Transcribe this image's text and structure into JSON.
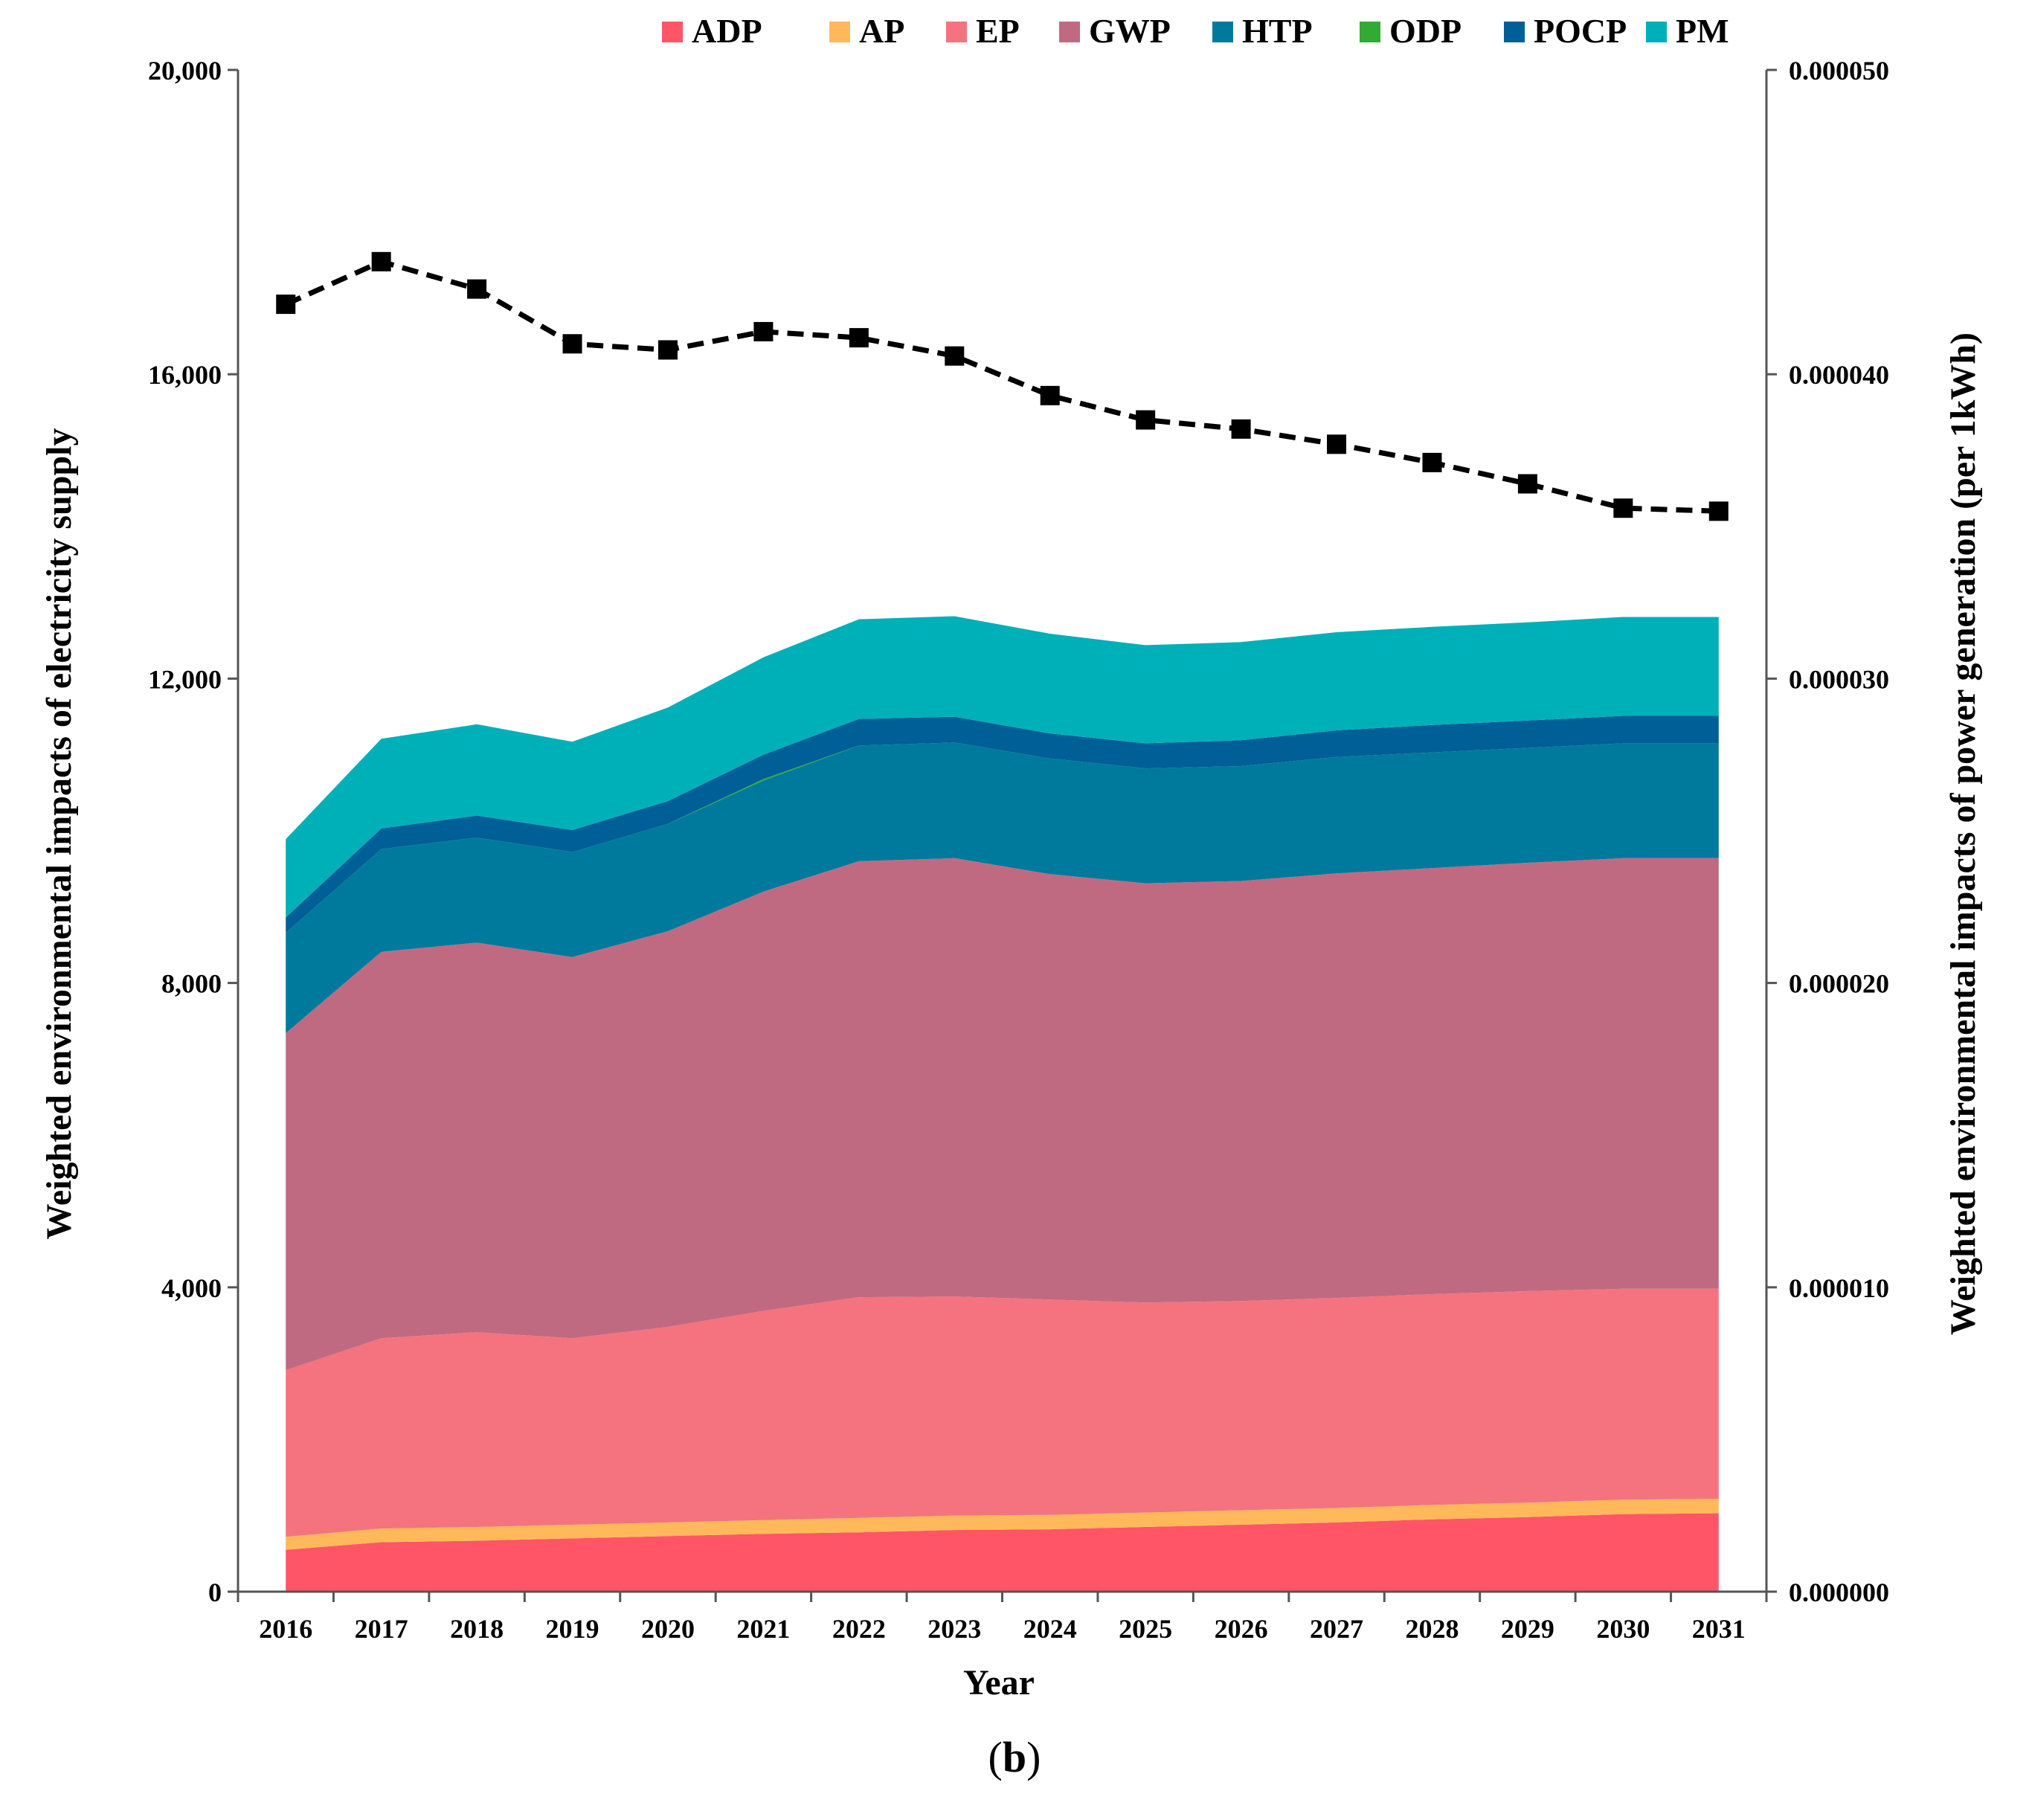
{
  "chart_data": {
    "type": "area",
    "stacked": true,
    "categories": [
      "2016",
      "2017",
      "2018",
      "2019",
      "2020",
      "2021",
      "2022",
      "2023",
      "2024",
      "2025",
      "2026",
      "2027",
      "2028",
      "2029",
      "2030",
      "2031"
    ],
    "series": [
      {
        "name": "ADP",
        "color": "#FF5566",
        "values": [
          550,
          650,
          670,
          700,
          730,
          760,
          780,
          810,
          820,
          850,
          880,
          910,
          950,
          980,
          1020,
          1030
        ]
      },
      {
        "name": "AP",
        "color": "#FFB95A",
        "values": [
          170,
          180,
          180,
          180,
          180,
          180,
          190,
          190,
          190,
          190,
          190,
          190,
          190,
          190,
          190,
          190
        ]
      },
      {
        "name": "EP",
        "color": "#F4737E",
        "values": [
          2190,
          2500,
          2560,
          2450,
          2570,
          2750,
          2900,
          2880,
          2830,
          2760,
          2750,
          2760,
          2770,
          2780,
          2770,
          2760
        ]
      },
      {
        "name": "GWP",
        "color": "#C06A82",
        "values": [
          4430,
          5080,
          5120,
          5010,
          5200,
          5510,
          5730,
          5760,
          5590,
          5510,
          5520,
          5580,
          5600,
          5630,
          5660,
          5660
        ]
      },
      {
        "name": "HTP",
        "color": "#007A9C",
        "values": [
          1320,
          1350,
          1380,
          1380,
          1410,
          1460,
          1520,
          1520,
          1520,
          1510,
          1510,
          1530,
          1520,
          1510,
          1510,
          1510
        ]
      },
      {
        "name": "ODP",
        "color": "#33AA33",
        "values": [
          0,
          0,
          0,
          0,
          0,
          20,
          0,
          0,
          0,
          0,
          0,
          0,
          0,
          0,
          0,
          0
        ]
      },
      {
        "name": "POCP",
        "color": "#005F96",
        "values": [
          200,
          270,
          290,
          290,
          300,
          320,
          350,
          340,
          330,
          330,
          340,
          350,
          360,
          360,
          360,
          360
        ]
      },
      {
        "name": "PM",
        "color": "#00B0B8",
        "values": [
          1030,
          1180,
          1200,
          1160,
          1230,
          1280,
          1310,
          1320,
          1310,
          1290,
          1290,
          1290,
          1290,
          1290,
          1300,
          1300
        ]
      }
    ],
    "line_series": {
      "name": "",
      "axis": "right",
      "style": "dashed",
      "marker": "square",
      "color": "#000000",
      "values": [
        4.23e-05,
        4.37e-05,
        4.28e-05,
        4.1e-05,
        4.08e-05,
        4.14e-05,
        4.12e-05,
        4.06e-05,
        3.93e-05,
        3.85e-05,
        3.82e-05,
        3.77e-05,
        3.71e-05,
        3.64e-05,
        3.56e-05,
        3.55e-05
      ]
    },
    "xlabel": "Year",
    "ylabel_left": "Weighted environmental impacts of electricity supply",
    "ylabel_right": "Weighted environmental impacts of power generation (per 1kWh)",
    "ylim_left": [
      0,
      20000
    ],
    "ylim_right": [
      0,
      5e-05
    ],
    "yticks_left": [
      "0",
      "4,000",
      "8,000",
      "12,000",
      "16,000",
      "20,000"
    ],
    "yticks_right": [
      "0.000000",
      "0.000010",
      "0.000020",
      "0.000030",
      "0.000040",
      "0.000050"
    ],
    "grid": false,
    "legend_position": "top",
    "panel_label": "(b)",
    "panel_letter": "b"
  }
}
